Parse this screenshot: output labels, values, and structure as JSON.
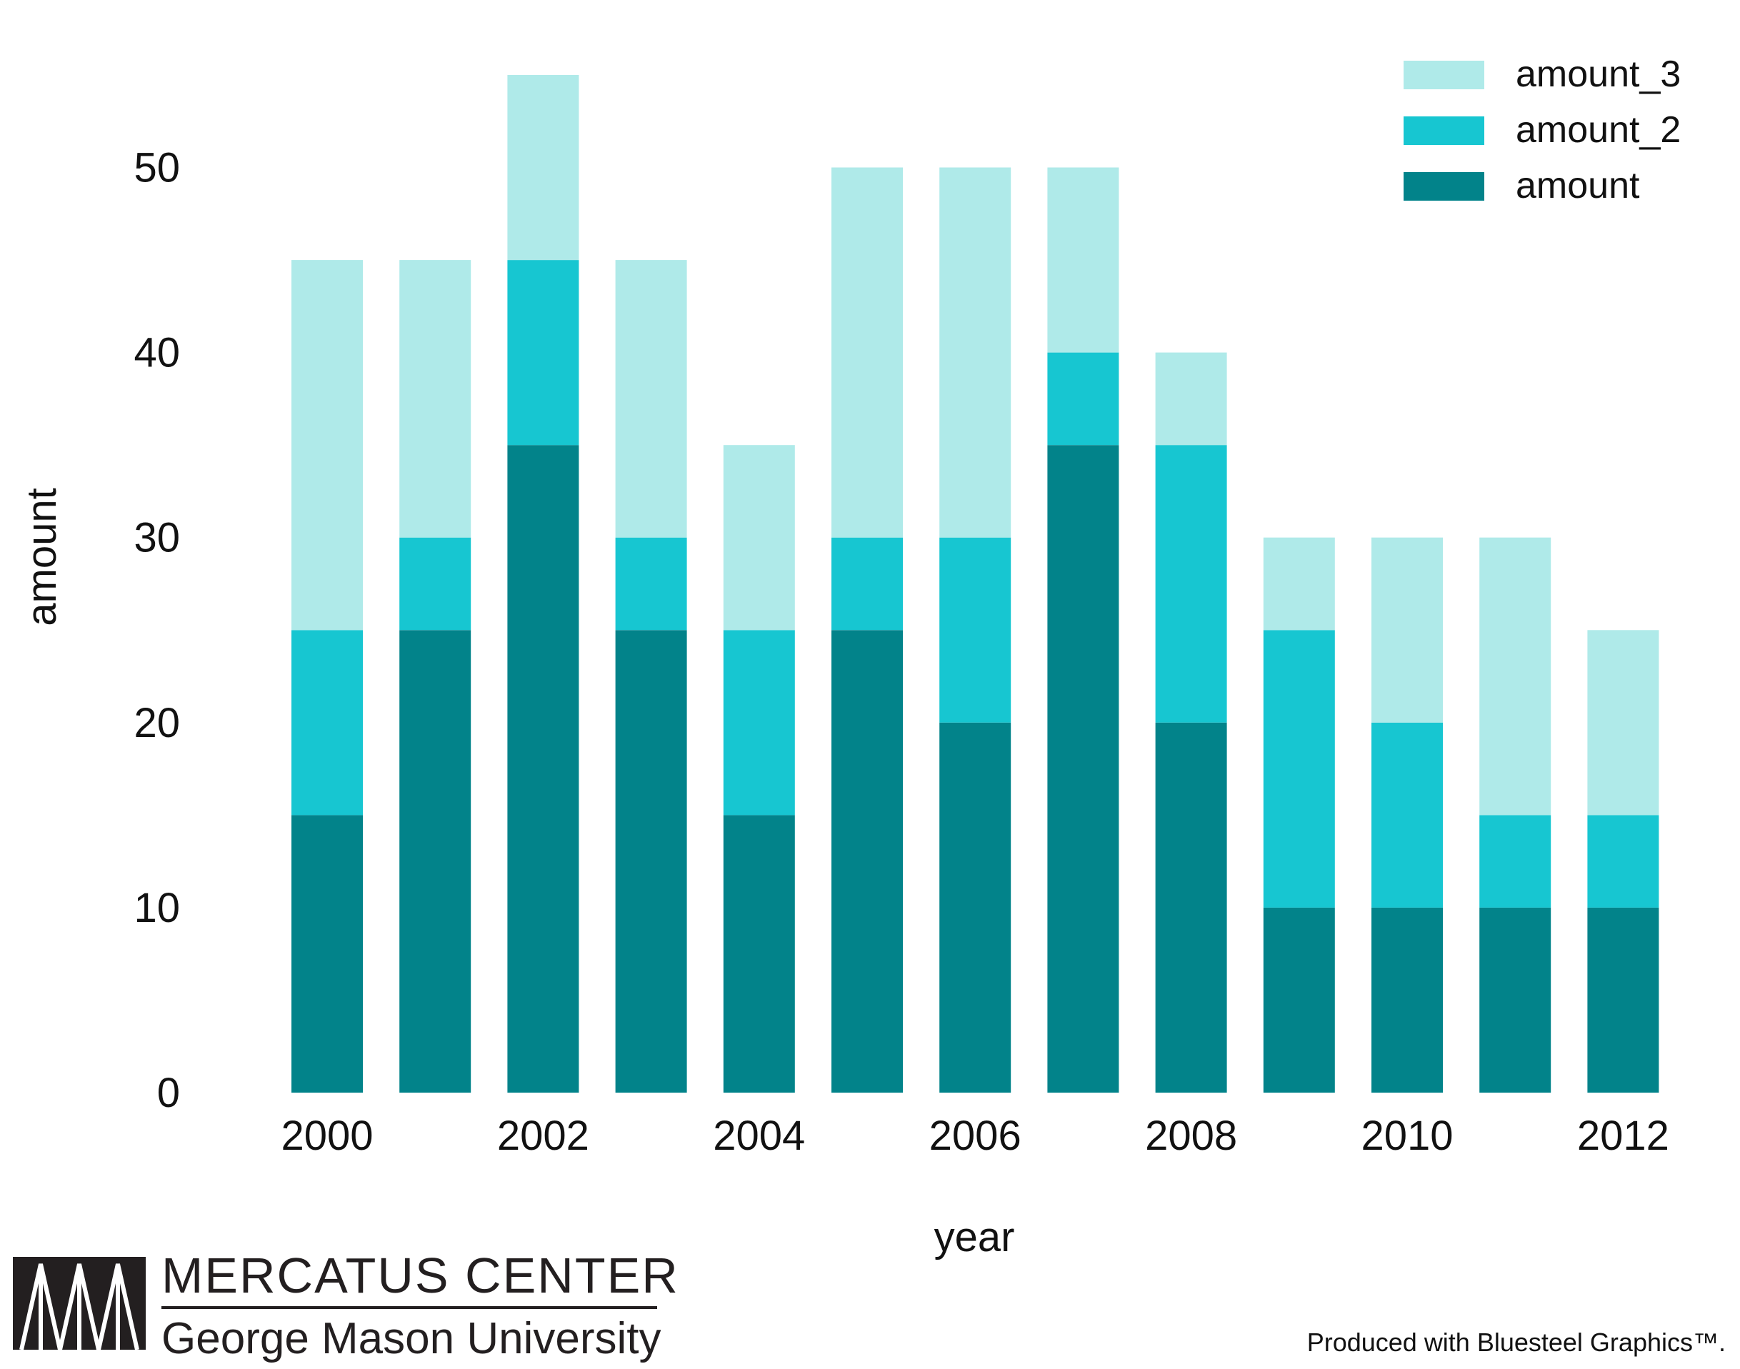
{
  "chart_data": {
    "type": "bar",
    "stacked": true,
    "title": "",
    "xlabel": "year",
    "ylabel": "amount",
    "ylim": [
      0,
      55
    ],
    "yticks": [
      0,
      10,
      20,
      30,
      40,
      50
    ],
    "xticks": [
      "2000",
      "2002",
      "2004",
      "2006",
      "2008",
      "2010",
      "2012"
    ],
    "categories": [
      "2000",
      "2001",
      "2002",
      "2003",
      "2004",
      "2005",
      "2006",
      "2007",
      "2008",
      "2009",
      "2010",
      "2011",
      "2012"
    ],
    "series": [
      {
        "name": "amount",
        "color": "#02838a",
        "values": [
          15,
          25,
          35,
          25,
          15,
          25,
          20,
          35,
          20,
          10,
          10,
          10,
          10
        ]
      },
      {
        "name": "amount_2",
        "color": "#17c6d1",
        "values": [
          10,
          5,
          10,
          5,
          10,
          5,
          10,
          5,
          15,
          15,
          10,
          5,
          5
        ]
      },
      {
        "name": "amount_3",
        "color": "#afeae9",
        "values": [
          20,
          15,
          10,
          15,
          10,
          20,
          20,
          10,
          5,
          5,
          10,
          15,
          10
        ]
      }
    ],
    "legend_position": "top-right",
    "grid": false
  },
  "logo": {
    "title": "MERCATUS CENTER",
    "subtitle": "George Mason University"
  },
  "credit": "Produced with Bluesteel Graphics™."
}
